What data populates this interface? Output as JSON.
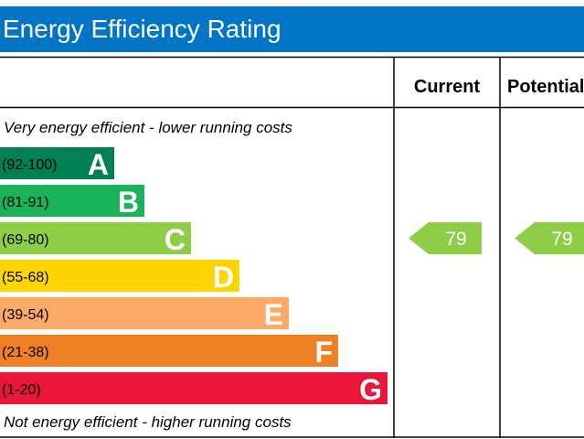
{
  "title": "Energy Efficiency Rating",
  "chart_data": {
    "type": "bar",
    "title": "Energy Efficiency Rating",
    "columns": [
      "Current",
      "Potential"
    ],
    "top_note": "Very energy efficient - lower running costs",
    "bottom_note": "Not energy efficient - higher running costs",
    "bands": [
      {
        "letter": "A",
        "range": "(92-100)",
        "color": "#008054"
      },
      {
        "letter": "B",
        "range": "(81-91)",
        "color": "#19b459"
      },
      {
        "letter": "C",
        "range": "(69-80)",
        "color": "#8dce46"
      },
      {
        "letter": "D",
        "range": "(55-68)",
        "color": "#ffd500"
      },
      {
        "letter": "E",
        "range": "(39-54)",
        "color": "#fcaa65"
      },
      {
        "letter": "F",
        "range": "(21-38)",
        "color": "#ef8023"
      },
      {
        "letter": "G",
        "range": "(1-20)",
        "color": "#e9153b"
      }
    ],
    "current": {
      "value": 79,
      "band": "C",
      "color": "#8dce46"
    },
    "potential": {
      "value": 79,
      "band": "C",
      "color": "#8dce46"
    }
  }
}
